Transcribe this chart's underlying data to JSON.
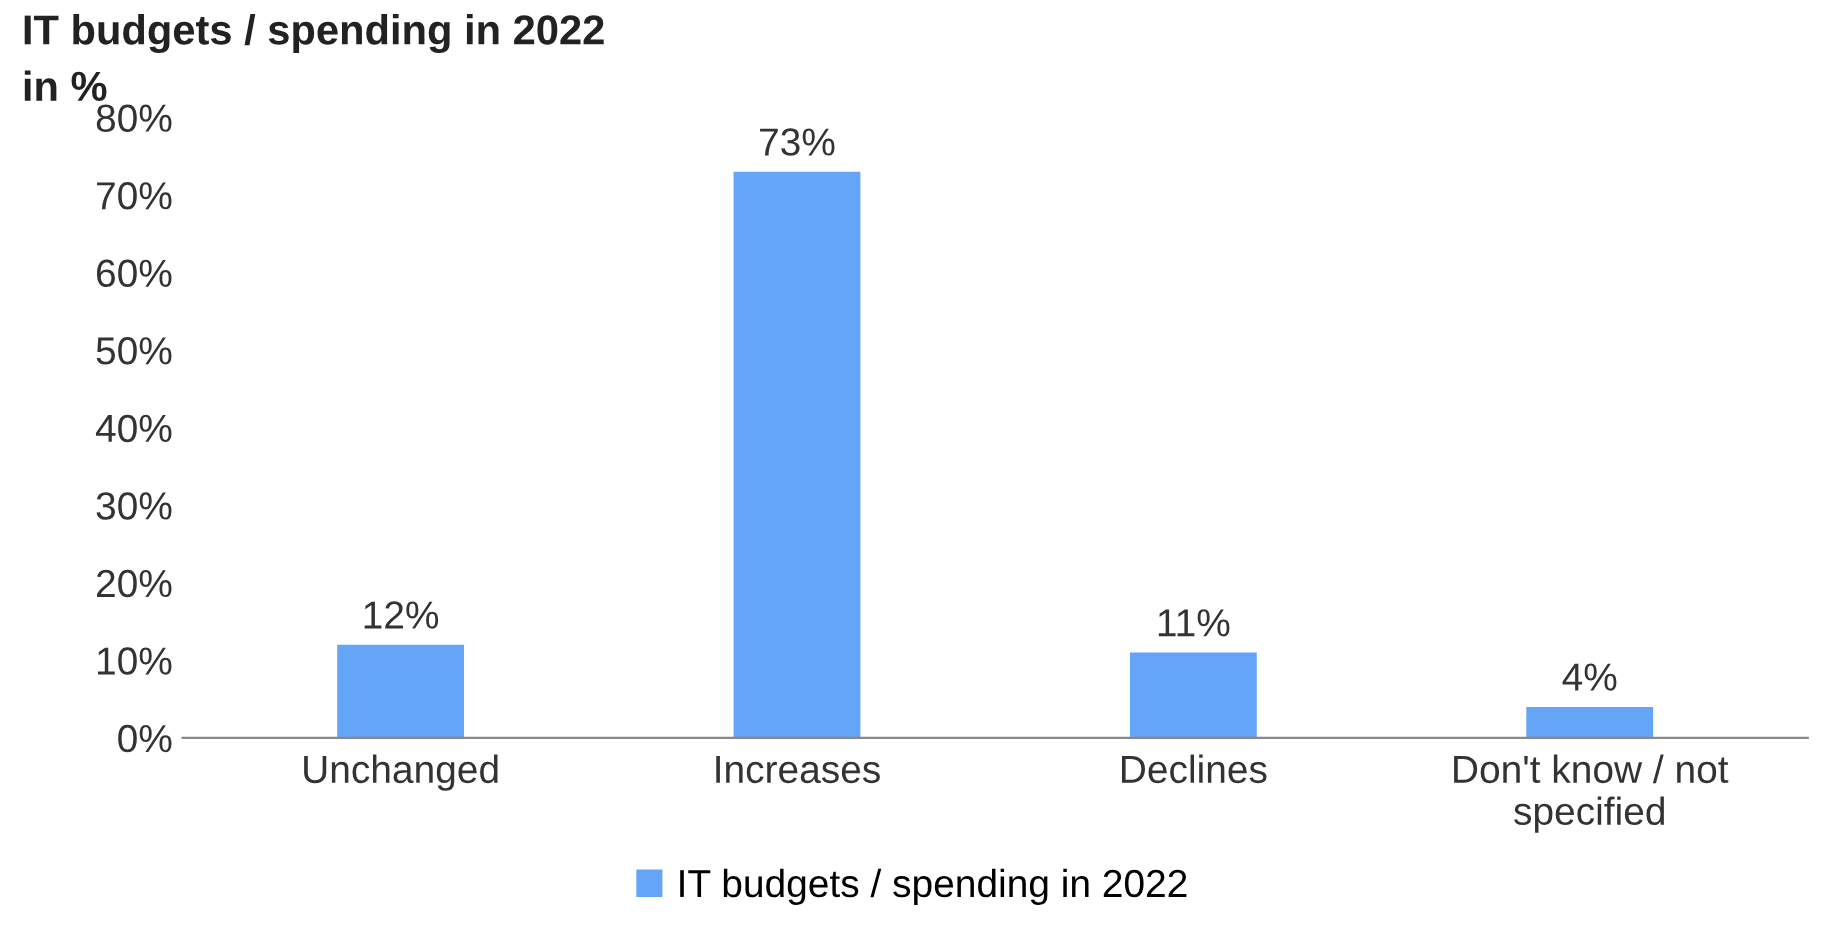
{
  "chart_data": {
    "type": "bar",
    "title": "IT budgets / spending in 2022",
    "subtitle": "in %",
    "categories": [
      "Unchanged",
      "Increases",
      "Declines",
      "Don't know / not\nspecified"
    ],
    "series": [
      {
        "name": "IT budgets / spending in 2022",
        "color": "#64a5f8",
        "values": [
          12,
          73,
          11,
          4
        ],
        "value_labels": [
          "12%",
          "73%",
          "11%",
          "4%"
        ]
      }
    ],
    "ylim": [
      0,
      80
    ],
    "yticks": [
      {
        "value": 0,
        "label": "0%"
      },
      {
        "value": 10,
        "label": "10%"
      },
      {
        "value": 20,
        "label": "20%"
      },
      {
        "value": 30,
        "label": "30%"
      },
      {
        "value": 40,
        "label": "40%"
      },
      {
        "value": 50,
        "label": "50%"
      },
      {
        "value": 60,
        "label": "60%"
      },
      {
        "value": 70,
        "label": "70%"
      },
      {
        "value": 80,
        "label": "80%"
      }
    ],
    "grid": false,
    "legend": "bottom"
  }
}
